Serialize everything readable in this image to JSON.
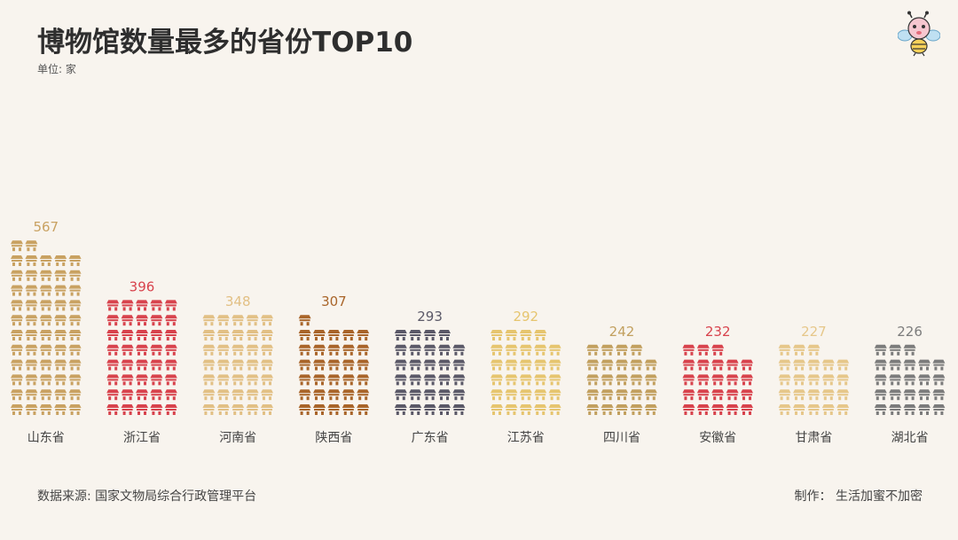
{
  "title": "博物馆数量最多的省份TOP10",
  "unit": "单位: 家",
  "source": "数据来源: 国家文物局综合行政管理平台",
  "credit": "制作： 生活加蜜不加密",
  "logo_icon": "bee-mascot-icon",
  "pictogram_icon": "building-icon",
  "chart_data": {
    "type": "bar",
    "categories": [
      "山东省",
      "浙江省",
      "河南省",
      "陕西省",
      "广东省",
      "江苏省",
      "四川省",
      "安徽省",
      "甘肃省",
      "湖北省"
    ],
    "values": [
      567,
      396,
      348,
      307,
      293,
      292,
      242,
      232,
      227,
      226
    ],
    "colors": [
      "#c9a262",
      "#d8434d",
      "#e2c085",
      "#a9652a",
      "#5b5968",
      "#e6c56f",
      "#c2a05f",
      "#d8434d",
      "#e6c78a",
      "#7c7c7c"
    ],
    "label_colors": [
      "#c9a262",
      "#d8434d",
      "#e2c085",
      "#a9652a",
      "#5b5968",
      "#e6c56f",
      "#c2a05f",
      "#d8434d",
      "#e6c78a",
      "#7c7c7c"
    ]
  }
}
